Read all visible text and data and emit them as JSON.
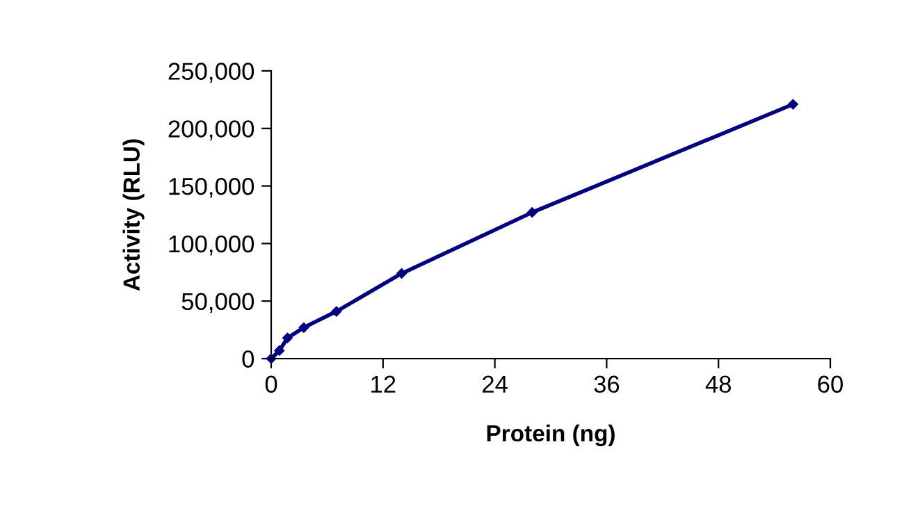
{
  "chart_data": {
    "type": "line",
    "xlabel": "Protein (ng)",
    "ylabel": "Activity (RLU)",
    "x": [
      0,
      0.875,
      1.75,
      3.5,
      7,
      14,
      28,
      56
    ],
    "series": [
      {
        "color": "#000080",
        "values": [
          0,
          7000,
          18000,
          27000,
          41000,
          74000,
          127000,
          221000
        ]
      }
    ],
    "xlim": [
      0,
      60
    ],
    "xticks": [
      0,
      12,
      24,
      36,
      48,
      60
    ],
    "ylim": [
      0,
      250000
    ],
    "yticks": [
      {
        "value": 0,
        "label": "0"
      },
      {
        "value": 50000,
        "label": "50,000"
      },
      {
        "value": 100000,
        "label": "100,000"
      },
      {
        "value": 150000,
        "label": "150,000"
      },
      {
        "value": 200000,
        "label": "200,000"
      },
      {
        "value": 250000,
        "label": "250,000"
      }
    ],
    "grid": false,
    "marker": "diamond",
    "line_style": "solid"
  }
}
